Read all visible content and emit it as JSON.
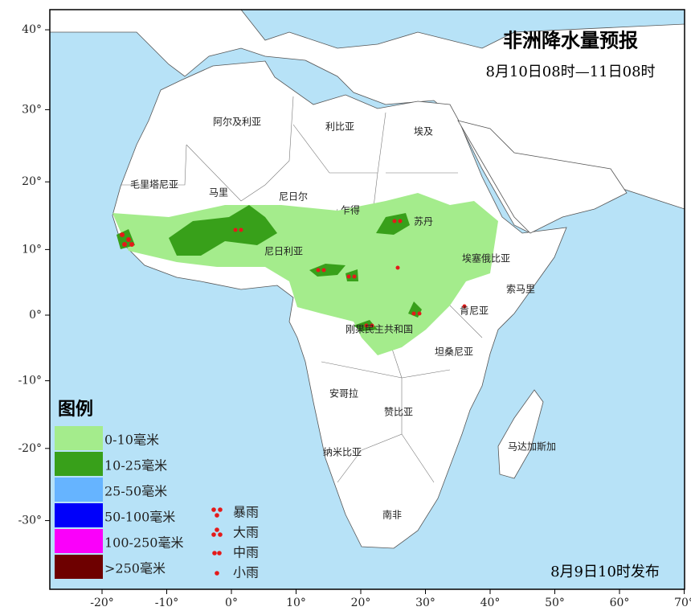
{
  "header": {
    "title": "非洲降水量预报",
    "subtitle": "8月10日08时—11日08时"
  },
  "axes": {
    "lat_ticks": [
      {
        "value": 40,
        "label": "40°"
      },
      {
        "value": 30,
        "label": "30°"
      },
      {
        "value": 20,
        "label": "20°"
      },
      {
        "value": 10,
        "label": "10°"
      },
      {
        "value": 0,
        "label": "0°"
      },
      {
        "value": -10,
        "label": "-10°"
      },
      {
        "value": -20,
        "label": "-20°"
      },
      {
        "value": -30,
        "label": "-30°"
      }
    ],
    "lon_ticks": [
      {
        "value": -20,
        "label": "-20°"
      },
      {
        "value": -10,
        "label": "-10°"
      },
      {
        "value": 0,
        "label": "0°"
      },
      {
        "value": 10,
        "label": "10°"
      },
      {
        "value": 20,
        "label": "20°"
      },
      {
        "value": 30,
        "label": "30°"
      },
      {
        "value": 40,
        "label": "40°"
      },
      {
        "value": 50,
        "label": "50°"
      },
      {
        "value": 60,
        "label": "60°"
      },
      {
        "value": 70,
        "label": "70°"
      }
    ]
  },
  "country_labels": [
    "阿尔及利亚",
    "利比亚",
    "埃及",
    "毛里塔尼亚",
    "马里",
    "尼日尔",
    "乍得",
    "苏丹",
    "尼日利亚",
    "埃塞俄比亚",
    "索马里",
    "肯尼亚",
    "刚果民主共和国",
    "坦桑尼亚",
    "安哥拉",
    "赞比亚",
    "马达加斯加",
    "纳米比亚",
    "南非"
  ],
  "legend": {
    "title": "图例",
    "fill_classes": [
      {
        "label": "0-10毫米",
        "color": "#a4ec8c"
      },
      {
        "label": "10-25毫米",
        "color": "#38a01a"
      },
      {
        "label": "25-50毫米",
        "color": "#66b4ff"
      },
      {
        "label": "50-100毫米",
        "color": "#0000fa"
      },
      {
        "label": "100-250毫米",
        "color": "#fa00fa"
      },
      {
        "label": ">250毫米",
        "color": "#6e0000"
      }
    ],
    "dot_classes": [
      "暴雨",
      "大雨",
      "中雨",
      "小雨"
    ]
  },
  "footer": "8月9日10时发布"
}
